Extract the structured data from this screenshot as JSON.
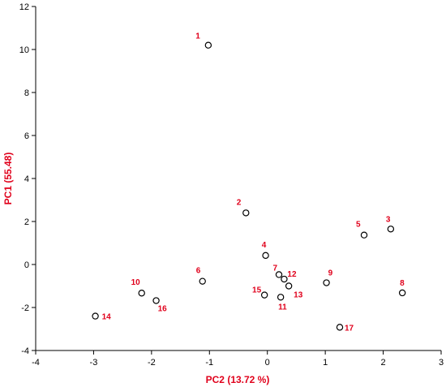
{
  "chart_data": {
    "type": "scatter",
    "title": "",
    "xlabel": "PC2 (13.72 %)",
    "ylabel": "PC1 (55.48)",
    "xlim": [
      -4,
      3
    ],
    "ylim": [
      -4,
      12
    ],
    "xticks": [
      "-4",
      "-3",
      "-2",
      "-1",
      "0",
      "1",
      "2",
      "3"
    ],
    "yticks": [
      "-4",
      "-2",
      "0",
      "2",
      "4",
      "6",
      "8",
      "10",
      "12"
    ],
    "grid": false,
    "legend": "none",
    "points": [
      {
        "label": "1",
        "x": -1.02,
        "y": 10.2
      },
      {
        "label": "2",
        "x": -0.37,
        "y": 2.4
      },
      {
        "label": "3",
        "x": 2.13,
        "y": 1.65
      },
      {
        "label": "4",
        "x": -0.03,
        "y": 0.42
      },
      {
        "label": "5",
        "x": 1.67,
        "y": 1.37
      },
      {
        "label": "6",
        "x": -1.12,
        "y": -0.78
      },
      {
        "label": "7",
        "x": 0.2,
        "y": -0.47
      },
      {
        "label": "8",
        "x": 2.33,
        "y": -1.32
      },
      {
        "label": "9",
        "x": 1.02,
        "y": -0.85
      },
      {
        "label": "10",
        "x": -2.17,
        "y": -1.33
      },
      {
        "label": "11",
        "x": 0.23,
        "y": -1.52
      },
      {
        "label": "12",
        "x": 0.29,
        "y": -0.68
      },
      {
        "label": "13",
        "x": 0.37,
        "y": -1.0
      },
      {
        "label": "14",
        "x": -2.97,
        "y": -2.4
      },
      {
        "label": "15",
        "x": -0.05,
        "y": -1.42
      },
      {
        "label": "16",
        "x": -1.92,
        "y": -1.68
      },
      {
        "label": "17",
        "x": 1.25,
        "y": -2.92
      }
    ]
  },
  "colors": {
    "label": "#e0001b",
    "axis": "#000000",
    "marker_stroke": "#000000"
  }
}
